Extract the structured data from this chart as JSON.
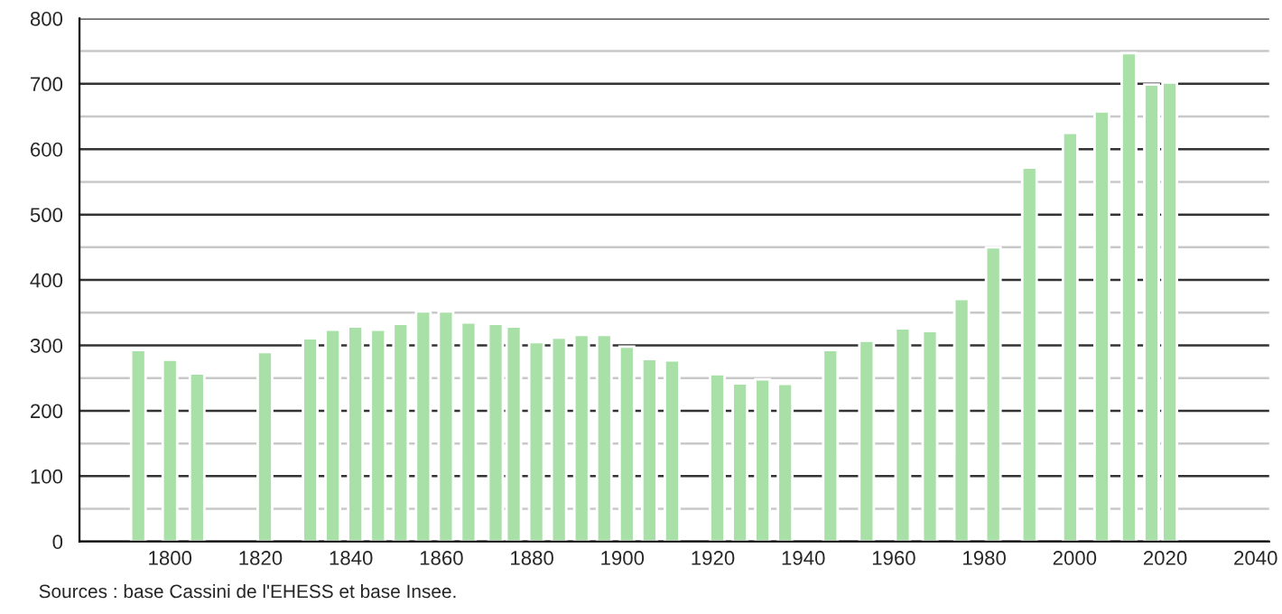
{
  "chart_data": {
    "type": "bar",
    "color": "#a8e0a8",
    "x": [
      1793,
      1800,
      1806,
      1821,
      1831,
      1836,
      1841,
      1846,
      1851,
      1856,
      1861,
      1866,
      1872,
      1876,
      1881,
      1886,
      1891,
      1896,
      1901,
      1906,
      1911,
      1921,
      1926,
      1931,
      1936,
      1946,
      1954,
      1962,
      1968,
      1975,
      1982,
      1990,
      1999,
      2006,
      2012,
      2017,
      2021
    ],
    "values": [
      293,
      278,
      257,
      290,
      311,
      324,
      329,
      324,
      333,
      352,
      352,
      335,
      333,
      329,
      305,
      312,
      316,
      316,
      298,
      279,
      277,
      256,
      242,
      248,
      241,
      293,
      307,
      326,
      322,
      371,
      450,
      572,
      625,
      658,
      747,
      699,
      702
    ],
    "xlim": [
      1780,
      2043
    ],
    "xticks": [
      1800,
      1820,
      1840,
      1860,
      1880,
      1900,
      1920,
      1940,
      1960,
      1980,
      2000,
      2020,
      2040
    ],
    "ylim": [
      0,
      800
    ],
    "yticks": [
      0,
      {
        "value": 50,
        "label": null
      },
      100,
      {
        "value": 150,
        "label": null
      },
      200,
      {
        "value": 250,
        "label": null
      },
      300,
      {
        "value": 350,
        "label": null
      },
      400,
      {
        "value": 450,
        "label": null
      },
      500,
      {
        "value": 550,
        "label": null
      },
      600,
      {
        "value": 650,
        "label": null
      },
      700,
      {
        "value": 750,
        "label": null
      },
      800
    ],
    "grid": "y",
    "annotations": [
      "Sources : base Cassini de l'EHESS et base Insee."
    ]
  }
}
